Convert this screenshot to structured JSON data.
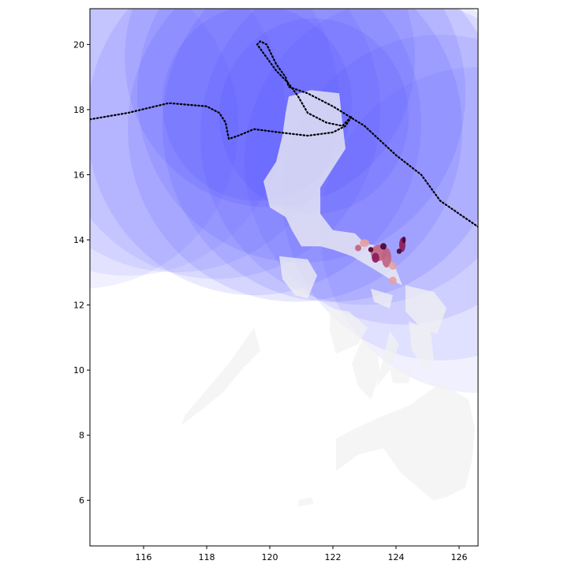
{
  "map": {
    "lon_range": [
      114.3,
      126.6
    ],
    "lat_range": [
      4.6,
      21.1
    ],
    "x_ticks": [
      116,
      118,
      120,
      122,
      124,
      126
    ],
    "x_tick_labels": [
      "116",
      "118",
      "120",
      "122",
      "124",
      "126"
    ],
    "y_ticks": [
      6,
      8,
      10,
      12,
      14,
      16,
      18,
      20
    ],
    "y_tick_labels": [
      "6",
      "8",
      "10",
      "12",
      "14",
      "16",
      "18",
      "20"
    ],
    "land_color": "#f2f2f2",
    "wind_field_color": "#4444ff",
    "track_color": "#000000",
    "impact_palette": [
      "#e8a0a0",
      "#c06080",
      "#8a1a5a",
      "#4a0030"
    ],
    "grid": false
  },
  "chart_data": {
    "type": "map",
    "layers": [
      {
        "kind": "wind-swath-circles",
        "color": "#4444ff"
      },
      {
        "kind": "storm-track",
        "style": "dotted",
        "color": "#000000"
      },
      {
        "kind": "land-polygons",
        "color": "#f2f2f2"
      },
      {
        "kind": "impact-choropleth",
        "palette": [
          "#e8a0a0",
          "#c06080",
          "#8a1a5a",
          "#4a0030"
        ]
      }
    ],
    "swath_circles": [
      {
        "lon": 114.0,
        "lat": 17.5,
        "radius_deg": 5.0,
        "alpha": 0.08
      },
      {
        "lon": 115.5,
        "lat": 17.9,
        "radius_deg": 5.0,
        "alpha": 0.08
      },
      {
        "lon": 117.0,
        "lat": 18.2,
        "radius_deg": 5.2,
        "alpha": 0.09
      },
      {
        "lon": 118.3,
        "lat": 18.0,
        "radius_deg": 5.2,
        "alpha": 0.1
      },
      {
        "lon": 119.5,
        "lat": 17.6,
        "radius_deg": 5.3,
        "alpha": 0.11
      },
      {
        "lon": 120.8,
        "lat": 17.4,
        "radius_deg": 5.3,
        "alpha": 0.12
      },
      {
        "lon": 122.0,
        "lat": 17.5,
        "radius_deg": 5.4,
        "alpha": 0.13
      },
      {
        "lon": 121.0,
        "lat": 18.5,
        "radius_deg": 5.2,
        "alpha": 0.12
      },
      {
        "lon": 120.0,
        "lat": 19.6,
        "radius_deg": 4.6,
        "alpha": 0.12
      },
      {
        "lon": 123.0,
        "lat": 17.2,
        "radius_deg": 5.2,
        "alpha": 0.11
      },
      {
        "lon": 124.2,
        "lat": 16.4,
        "radius_deg": 5.0,
        "alpha": 0.1
      },
      {
        "lon": 125.4,
        "lat": 15.3,
        "radius_deg": 5.0,
        "alpha": 0.09
      },
      {
        "lon": 126.6,
        "lat": 14.3,
        "radius_deg": 5.0,
        "alpha": 0.08
      },
      {
        "lon": 119.6,
        "lat": 18.2,
        "radius_deg": 3.0,
        "alpha": 0.12
      },
      {
        "lon": 121.4,
        "lat": 17.8,
        "radius_deg": 3.0,
        "alpha": 0.12
      }
    ],
    "track_segments": [
      [
        [
          114.3,
          17.7
        ],
        [
          115.5,
          17.9
        ],
        [
          116.8,
          18.2
        ],
        [
          118.0,
          18.1
        ],
        [
          118.4,
          17.9
        ],
        [
          118.6,
          17.6
        ],
        [
          118.7,
          17.1
        ],
        [
          119.0,
          17.2
        ],
        [
          119.5,
          17.4
        ],
        [
          120.3,
          17.3
        ],
        [
          121.2,
          17.2
        ],
        [
          122.0,
          17.3
        ],
        [
          122.4,
          17.5
        ],
        [
          122.6,
          17.8
        ],
        [
          122.3,
          17.5
        ],
        [
          121.8,
          17.6
        ],
        [
          121.2,
          17.9
        ],
        [
          120.9,
          18.4
        ],
        [
          120.6,
          18.8
        ],
        [
          120.2,
          19.2
        ],
        [
          119.9,
          19.6
        ],
        [
          119.6,
          20.0
        ],
        [
          119.7,
          20.1
        ],
        [
          119.9,
          20.0
        ],
        [
          120.2,
          19.4
        ],
        [
          120.5,
          19.0
        ],
        [
          120.6,
          18.7
        ],
        [
          121.2,
          18.5
        ],
        [
          122.0,
          18.1
        ],
        [
          123.0,
          17.5
        ],
        [
          124.0,
          16.6
        ],
        [
          124.8,
          16.0
        ],
        [
          125.4,
          15.2
        ],
        [
          126.0,
          14.8
        ],
        [
          126.6,
          14.4
        ]
      ]
    ],
    "land_polygons": [
      {
        "name": "luzon",
        "points": [
          [
            120.6,
            18.4
          ],
          [
            121.3,
            18.6
          ],
          [
            122.2,
            18.5
          ],
          [
            122.3,
            17.6
          ],
          [
            122.4,
            16.8
          ],
          [
            122.0,
            16.2
          ],
          [
            121.6,
            15.6
          ],
          [
            121.6,
            14.8
          ],
          [
            122.0,
            14.3
          ],
          [
            122.7,
            14.2
          ],
          [
            123.0,
            13.9
          ],
          [
            123.5,
            13.8
          ],
          [
            124.0,
            13.1
          ],
          [
            124.2,
            12.6
          ],
          [
            123.8,
            12.8
          ],
          [
            123.3,
            13.1
          ],
          [
            122.6,
            13.5
          ],
          [
            122.0,
            13.7
          ],
          [
            121.6,
            13.8
          ],
          [
            121.0,
            13.8
          ],
          [
            120.7,
            14.3
          ],
          [
            120.5,
            14.7
          ],
          [
            120.0,
            15.0
          ],
          [
            119.8,
            15.8
          ],
          [
            120.2,
            16.4
          ],
          [
            120.4,
            17.2
          ],
          [
            120.5,
            17.9
          ]
        ]
      },
      {
        "name": "mindoro",
        "points": [
          [
            120.3,
            13.5
          ],
          [
            121.2,
            13.4
          ],
          [
            121.5,
            12.9
          ],
          [
            121.2,
            12.2
          ],
          [
            120.8,
            12.3
          ],
          [
            120.4,
            12.8
          ]
        ]
      },
      {
        "name": "panay",
        "points": [
          [
            121.9,
            11.9
          ],
          [
            122.5,
            11.8
          ],
          [
            123.1,
            11.3
          ],
          [
            122.8,
            10.8
          ],
          [
            122.1,
            10.5
          ],
          [
            121.9,
            11.2
          ]
        ]
      },
      {
        "name": "negros",
        "points": [
          [
            122.9,
            10.9
          ],
          [
            123.4,
            10.6
          ],
          [
            123.5,
            9.9
          ],
          [
            123.2,
            9.1
          ],
          [
            122.8,
            9.5
          ],
          [
            122.6,
            10.2
          ]
        ]
      },
      {
        "name": "cebu",
        "points": [
          [
            123.8,
            11.2
          ],
          [
            124.1,
            10.8
          ],
          [
            123.8,
            10.0
          ],
          [
            123.4,
            9.5
          ],
          [
            123.6,
            10.4
          ]
        ]
      },
      {
        "name": "samar",
        "points": [
          [
            124.3,
            12.6
          ],
          [
            125.2,
            12.4
          ],
          [
            125.6,
            11.9
          ],
          [
            125.3,
            11.1
          ],
          [
            124.8,
            11.3
          ],
          [
            124.3,
            11.8
          ]
        ]
      },
      {
        "name": "leyte",
        "points": [
          [
            124.4,
            11.5
          ],
          [
            125.1,
            11.2
          ],
          [
            125.2,
            10.3
          ],
          [
            124.9,
            10.0
          ],
          [
            124.5,
            10.6
          ]
        ]
      },
      {
        "name": "bohol",
        "points": [
          [
            123.8,
            10.1
          ],
          [
            124.5,
            10.0
          ],
          [
            124.4,
            9.6
          ],
          [
            123.9,
            9.6
          ]
        ]
      },
      {
        "name": "palawan",
        "points": [
          [
            119.5,
            11.3
          ],
          [
            119.7,
            10.6
          ],
          [
            119.1,
            10.0
          ],
          [
            118.5,
            9.3
          ],
          [
            117.6,
            8.6
          ],
          [
            117.2,
            8.3
          ],
          [
            117.3,
            8.6
          ],
          [
            118.0,
            9.4
          ],
          [
            118.7,
            10.2
          ],
          [
            119.2,
            10.9
          ]
        ]
      },
      {
        "name": "mindanao",
        "points": [
          [
            122.1,
            7.9
          ],
          [
            122.7,
            8.2
          ],
          [
            123.6,
            8.6
          ],
          [
            124.4,
            8.9
          ],
          [
            125.4,
            9.6
          ],
          [
            126.3,
            9.1
          ],
          [
            126.5,
            8.2
          ],
          [
            126.4,
            7.2
          ],
          [
            126.2,
            6.4
          ],
          [
            125.6,
            6.1
          ],
          [
            125.2,
            6.0
          ],
          [
            124.8,
            6.3
          ],
          [
            124.1,
            6.9
          ],
          [
            123.6,
            7.6
          ],
          [
            122.8,
            7.4
          ],
          [
            122.1,
            6.9
          ]
        ]
      },
      {
        "name": "sulu",
        "points": [
          [
            120.9,
            6.0
          ],
          [
            121.3,
            6.1
          ],
          [
            121.4,
            5.9
          ],
          [
            120.9,
            5.8
          ]
        ]
      },
      {
        "name": "masbate",
        "points": [
          [
            123.2,
            12.5
          ],
          [
            123.9,
            12.3
          ],
          [
            123.8,
            11.9
          ],
          [
            123.3,
            12.1
          ]
        ]
      }
    ],
    "impact_regions": [
      {
        "lon": 123.45,
        "lat": 13.6,
        "rx": 0.25,
        "ry": 0.25,
        "level": 1
      },
      {
        "lon": 123.7,
        "lat": 13.45,
        "rx": 0.15,
        "ry": 0.3,
        "level": 1
      },
      {
        "lon": 123.0,
        "lat": 13.9,
        "rx": 0.15,
        "ry": 0.12,
        "level": 0
      },
      {
        "lon": 122.8,
        "lat": 13.75,
        "rx": 0.1,
        "ry": 0.1,
        "level": 1
      },
      {
        "lon": 123.9,
        "lat": 13.2,
        "rx": 0.12,
        "ry": 0.12,
        "level": 0
      },
      {
        "lon": 123.35,
        "lat": 13.45,
        "rx": 0.12,
        "ry": 0.15,
        "level": 2
      },
      {
        "lon": 123.6,
        "lat": 13.8,
        "rx": 0.1,
        "ry": 0.1,
        "level": 3
      },
      {
        "lon": 123.2,
        "lat": 13.7,
        "rx": 0.08,
        "ry": 0.08,
        "level": 3
      },
      {
        "lon": 124.2,
        "lat": 13.85,
        "rx": 0.1,
        "ry": 0.22,
        "level": 2
      },
      {
        "lon": 124.25,
        "lat": 14.0,
        "rx": 0.06,
        "ry": 0.1,
        "level": 3
      },
      {
        "lon": 124.1,
        "lat": 13.65,
        "rx": 0.08,
        "ry": 0.08,
        "level": 3
      },
      {
        "lon": 123.9,
        "lat": 12.75,
        "rx": 0.12,
        "ry": 0.12,
        "level": 0
      }
    ]
  }
}
